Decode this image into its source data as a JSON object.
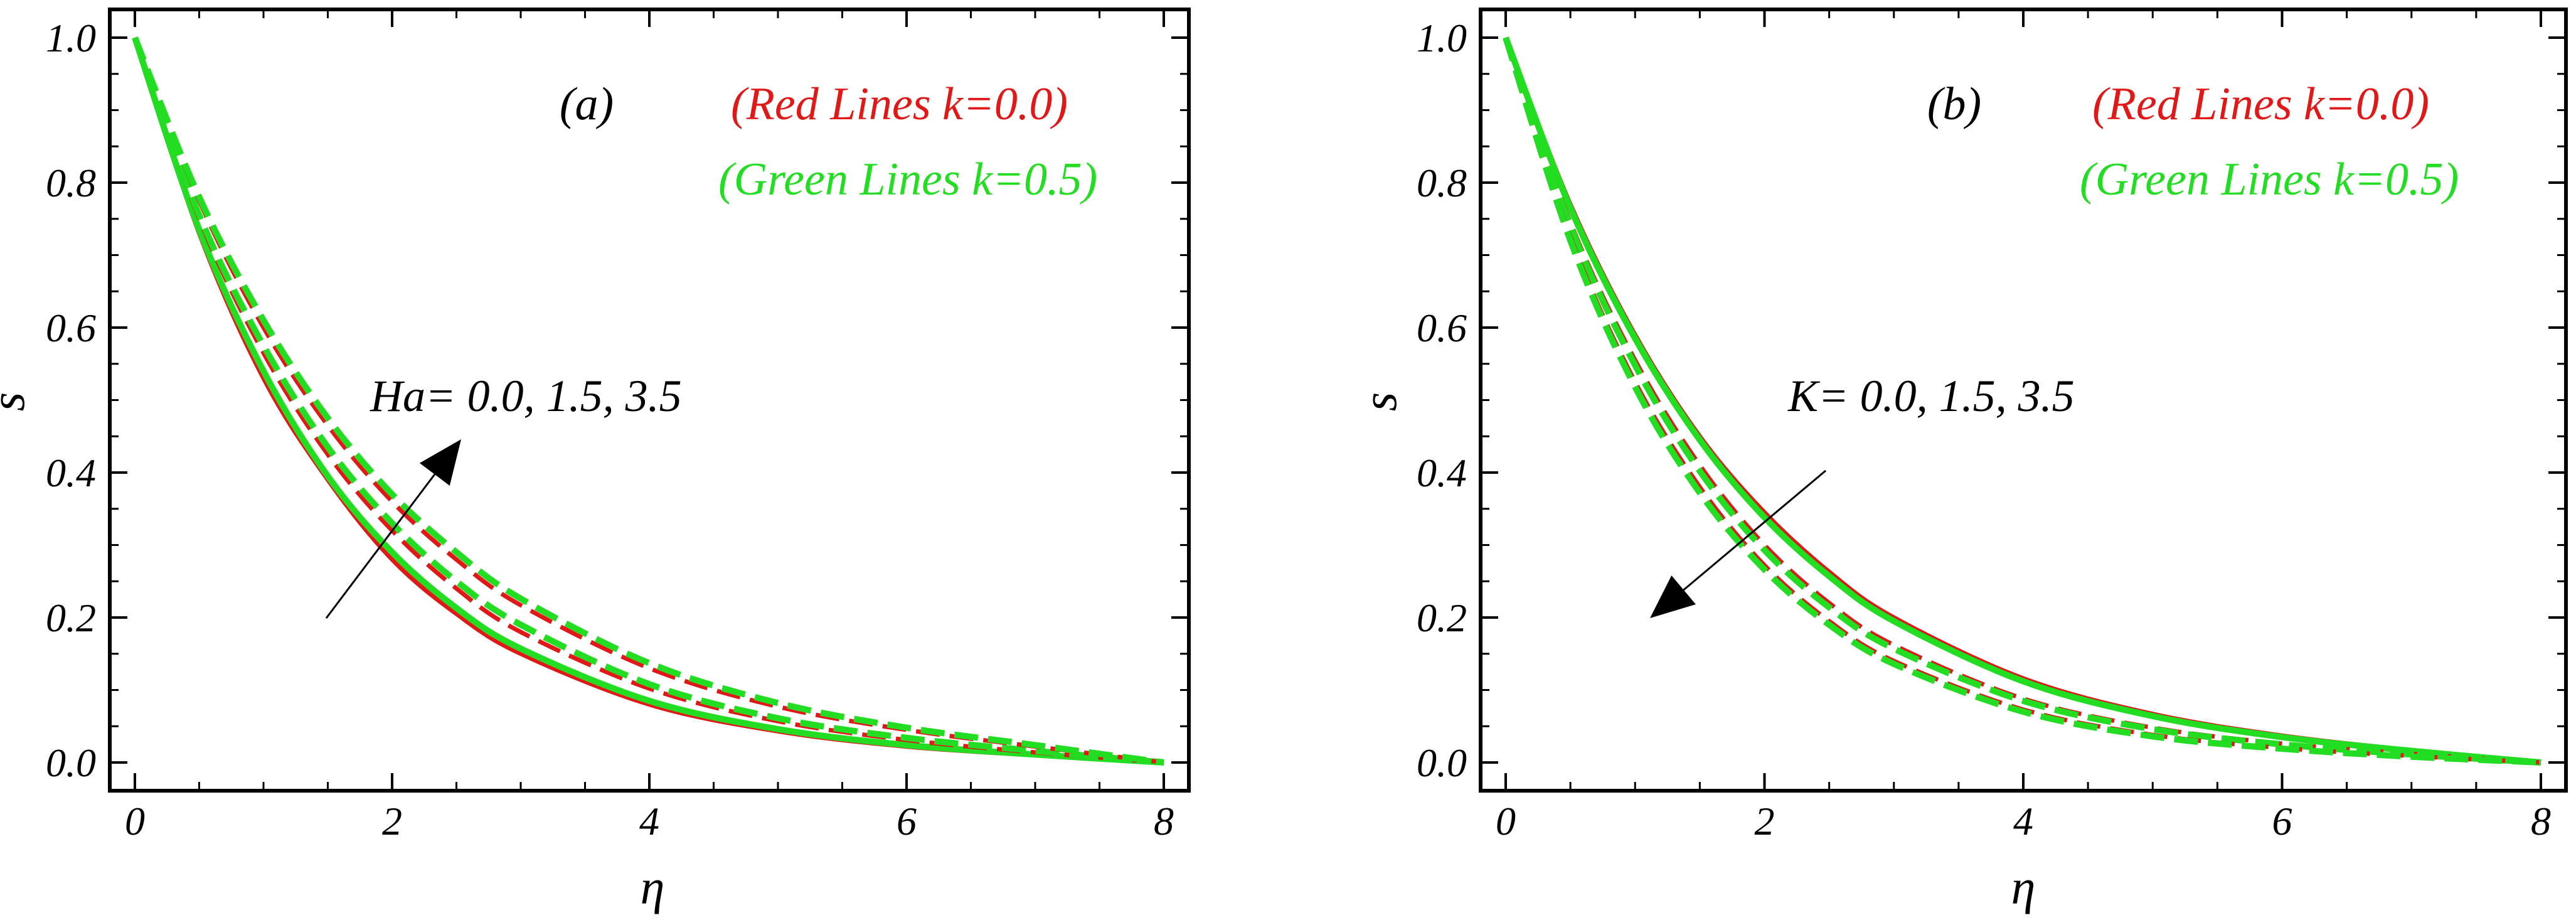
{
  "colors": {
    "red": "#e01818",
    "green": "#22dd22",
    "frame": "#000000",
    "arrow": "#000000"
  },
  "chart_data": [
    {
      "type": "line",
      "panel_label": "(a)",
      "xlabel": "η",
      "ylabel": "s",
      "xlim": [
        0,
        8
      ],
      "ylim": [
        0,
        1.0
      ],
      "xticks": [
        "0",
        "2",
        "4",
        "6",
        "8"
      ],
      "yticks": [
        "0.0",
        "0.2",
        "0.4",
        "0.6",
        "0.8",
        "1.0"
      ],
      "grid": false,
      "legend": {
        "position": "top-right",
        "red_label": "(Red Lines k=0.0)",
        "green_label": "(Green Lines k=0.5)"
      },
      "annotation": "Ha= 0.0, 1.5, 3.5",
      "arrow_direction": "up-right",
      "x": [
        0,
        0.5,
        1,
        1.5,
        2,
        2.5,
        3,
        4,
        5,
        6,
        7,
        8
      ],
      "series": [
        {
          "group": "Red",
          "k": 0.0,
          "param": 0.0,
          "dash": "solid",
          "values": [
            1.0,
            0.73,
            0.53,
            0.39,
            0.28,
            0.205,
            0.15,
            0.08,
            0.043,
            0.022,
            0.01,
            0.0
          ]
        },
        {
          "group": "Green",
          "k": 0.5,
          "param": 0.0,
          "dash": "solid",
          "values": [
            1.0,
            0.735,
            0.54,
            0.395,
            0.29,
            0.213,
            0.157,
            0.085,
            0.046,
            0.024,
            0.011,
            0.0
          ]
        },
        {
          "group": "Red",
          "k": 0.0,
          "param": 1.5,
          "dash": "dashed",
          "values": [
            1.0,
            0.75,
            0.565,
            0.425,
            0.32,
            0.24,
            0.18,
            0.102,
            0.057,
            0.031,
            0.014,
            0.0
          ]
        },
        {
          "group": "Green",
          "k": 0.5,
          "param": 1.5,
          "dash": "dashed",
          "values": [
            1.0,
            0.755,
            0.575,
            0.435,
            0.33,
            0.25,
            0.19,
            0.108,
            0.061,
            0.034,
            0.016,
            0.0
          ]
        },
        {
          "group": "Red",
          "k": 0.0,
          "param": 3.5,
          "dash": "dashed",
          "values": [
            1.0,
            0.775,
            0.6,
            0.465,
            0.36,
            0.28,
            0.217,
            0.13,
            0.077,
            0.045,
            0.022,
            0.0
          ]
        },
        {
          "group": "Green",
          "k": 0.5,
          "param": 3.5,
          "dash": "dashed",
          "values": [
            1.0,
            0.78,
            0.61,
            0.475,
            0.37,
            0.29,
            0.226,
            0.137,
            0.082,
            0.048,
            0.024,
            0.0
          ]
        }
      ]
    },
    {
      "type": "line",
      "panel_label": "(b)",
      "xlabel": "η",
      "ylabel": "s",
      "xlim": [
        0,
        8
      ],
      "ylim": [
        0,
        1.0
      ],
      "xticks": [
        "0",
        "2",
        "4",
        "6",
        "8"
      ],
      "yticks": [
        "0.0",
        "0.2",
        "0.4",
        "0.6",
        "0.8",
        "1.0"
      ],
      "grid": false,
      "legend": {
        "position": "top-right",
        "red_label": "(Red Lines k=0.0)",
        "green_label": "(Green Lines k=0.5)"
      },
      "annotation": "K= 0.0, 1.5, 3.5",
      "arrow_direction": "down-left",
      "x": [
        0,
        0.5,
        1,
        1.5,
        2,
        2.5,
        3,
        4,
        5,
        6,
        7,
        8
      ],
      "series": [
        {
          "group": "Red",
          "k": 0.0,
          "param": 0.0,
          "dash": "solid",
          "values": [
            1.0,
            0.77,
            0.59,
            0.45,
            0.345,
            0.263,
            0.2,
            0.116,
            0.067,
            0.037,
            0.017,
            0.0
          ]
        },
        {
          "group": "Green",
          "k": 0.5,
          "param": 0.0,
          "dash": "solid",
          "values": [
            1.0,
            0.765,
            0.585,
            0.445,
            0.338,
            0.257,
            0.195,
            0.112,
            0.064,
            0.035,
            0.016,
            0.0
          ]
        },
        {
          "group": "Red",
          "k": 0.0,
          "param": 1.5,
          "dash": "dashed",
          "values": [
            1.0,
            0.745,
            0.555,
            0.41,
            0.3,
            0.22,
            0.162,
            0.088,
            0.048,
            0.026,
            0.012,
            0.0
          ]
        },
        {
          "group": "Green",
          "k": 0.5,
          "param": 1.5,
          "dash": "dashed",
          "values": [
            1.0,
            0.74,
            0.548,
            0.402,
            0.293,
            0.214,
            0.157,
            0.085,
            0.046,
            0.025,
            0.011,
            0.0
          ]
        },
        {
          "group": "Red",
          "k": 0.0,
          "param": 3.5,
          "dash": "dashed",
          "values": [
            1.0,
            0.725,
            0.525,
            0.38,
            0.272,
            0.195,
            0.14,
            0.073,
            0.038,
            0.02,
            0.009,
            0.0
          ]
        },
        {
          "group": "Green",
          "k": 0.5,
          "param": 3.5,
          "dash": "dashed",
          "values": [
            1.0,
            0.72,
            0.518,
            0.372,
            0.266,
            0.19,
            0.136,
            0.07,
            0.036,
            0.019,
            0.008,
            0.0
          ]
        }
      ]
    }
  ]
}
